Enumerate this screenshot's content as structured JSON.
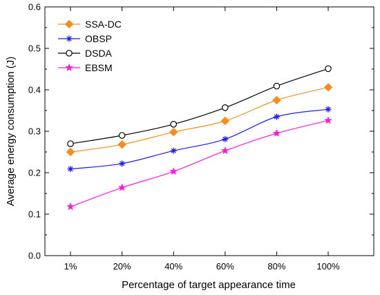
{
  "chart_data": {
    "type": "line",
    "title": "",
    "xlabel": "Percentage of target appearance time",
    "ylabel": "Average energy consumption (J)",
    "categories": [
      "1%",
      "20%",
      "40%",
      "60%",
      "80%",
      "100%"
    ],
    "ylim": [
      0.0,
      0.6
    ],
    "yticks": [
      0.0,
      0.1,
      0.2,
      0.3,
      0.4,
      0.5,
      0.6
    ],
    "ytick_labels": [
      "0.0",
      "0.1",
      "0.2",
      "0.3",
      "0.4",
      "0.5",
      "0.6"
    ],
    "grid": false,
    "legend_position": "top-left",
    "series": [
      {
        "name": "SSA-DC",
        "color": "#ff8c1a",
        "marker": "diamond-filled",
        "values": [
          0.25,
          0.268,
          0.298,
          0.325,
          0.375,
          0.406
        ]
      },
      {
        "name": "OBSP",
        "color": "#1a1aff",
        "marker": "asterisk",
        "values": [
          0.209,
          0.222,
          0.253,
          0.281,
          0.335,
          0.353
        ]
      },
      {
        "name": "DSDA",
        "color": "#000000",
        "marker": "circle-open",
        "values": [
          0.27,
          0.29,
          0.317,
          0.357,
          0.409,
          0.451
        ]
      },
      {
        "name": "EBSM",
        "color": "#ff1adb",
        "marker": "star-filled",
        "values": [
          0.118,
          0.164,
          0.203,
          0.253,
          0.295,
          0.326
        ]
      }
    ]
  }
}
